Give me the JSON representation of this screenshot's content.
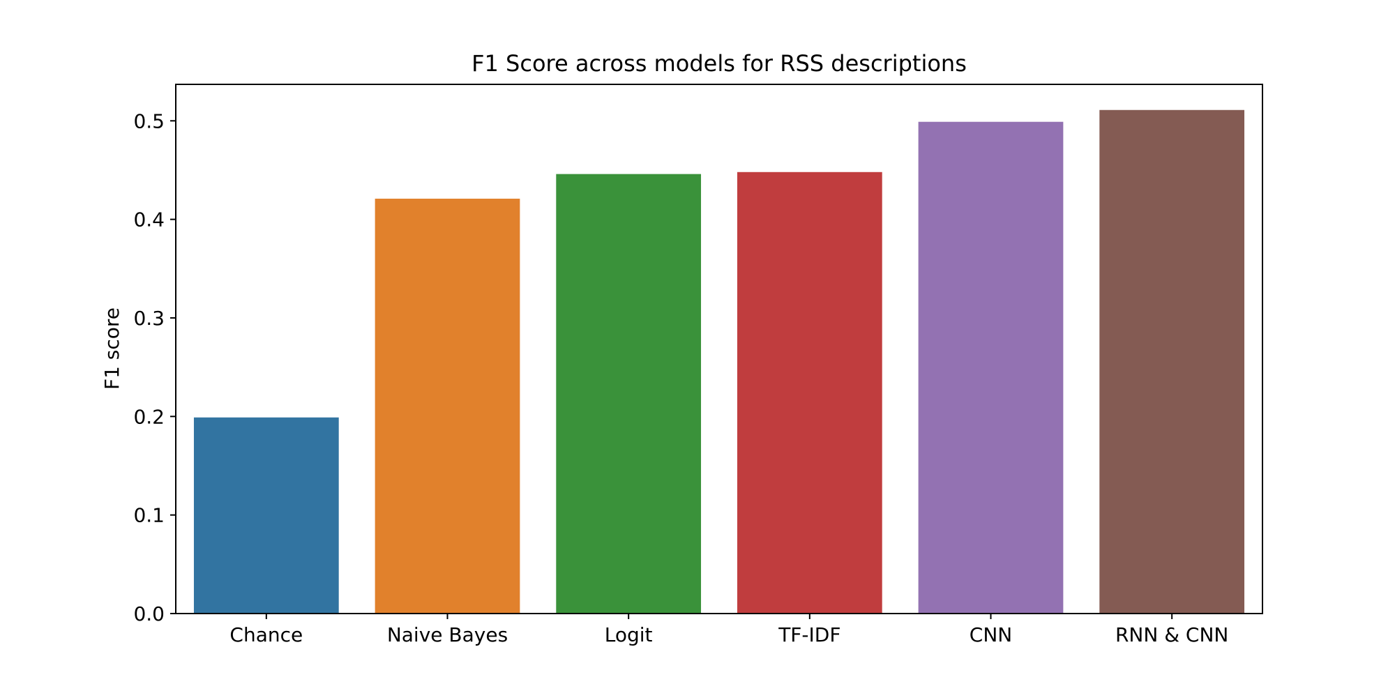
{
  "chart_data": {
    "type": "bar",
    "title": "F1 Score across models for RSS descriptions",
    "xlabel": "",
    "ylabel": "F1 score",
    "categories": [
      "Chance",
      "Naive Bayes",
      "Logit",
      "TF-IDF",
      "CNN",
      "RNN & CNN"
    ],
    "values": [
      0.199,
      0.421,
      0.446,
      0.448,
      0.499,
      0.511
    ],
    "colors": [
      "#3274a1",
      "#e1812c",
      "#3a923a",
      "#c03d3e",
      "#9372b2",
      "#845b53"
    ],
    "ylim": [
      0,
      0.537
    ],
    "yticks": [
      "0.0",
      "0.1",
      "0.2",
      "0.3",
      "0.4",
      "0.5"
    ],
    "grid": false,
    "legend": "none"
  }
}
